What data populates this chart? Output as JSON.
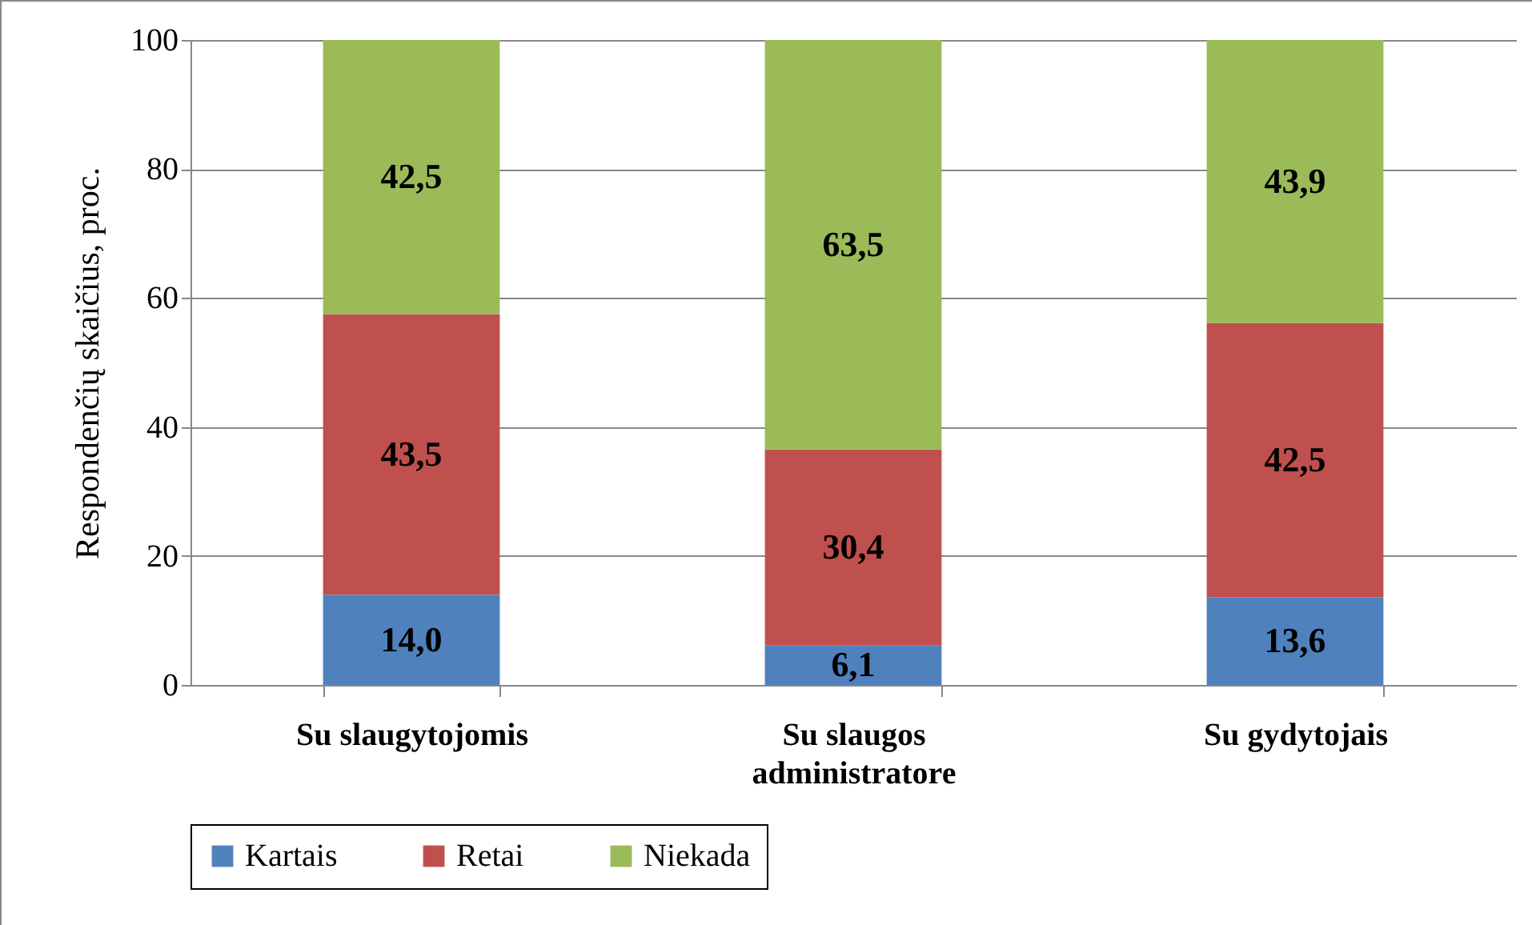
{
  "chart_data": {
    "type": "bar",
    "stacked": true,
    "ylabel": "Respondenčių skaičius, proc.",
    "categories": [
      "Su slaugytojomis",
      "Su slaugos administratore",
      "Su gydytojais"
    ],
    "series": [
      {
        "name": "Kartais",
        "color": "#4f81bd",
        "values": [
          14.0,
          6.1,
          13.6
        ],
        "value_labels": [
          "14,0",
          "6,1",
          "13,6"
        ]
      },
      {
        "name": "Retai",
        "color": "#c0504d",
        "values": [
          43.5,
          30.4,
          42.5
        ],
        "value_labels": [
          "43,5",
          "30,4",
          "42,5"
        ]
      },
      {
        "name": "Niekada",
        "color": "#9bbb59",
        "values": [
          42.5,
          63.5,
          43.9
        ],
        "value_labels": [
          "42,5",
          "63,5",
          "43,9"
        ]
      }
    ],
    "ylim": [
      0,
      100
    ],
    "yticks": [
      0,
      20,
      40,
      60,
      80,
      100
    ],
    "grid": "y",
    "legend": "bottom"
  }
}
